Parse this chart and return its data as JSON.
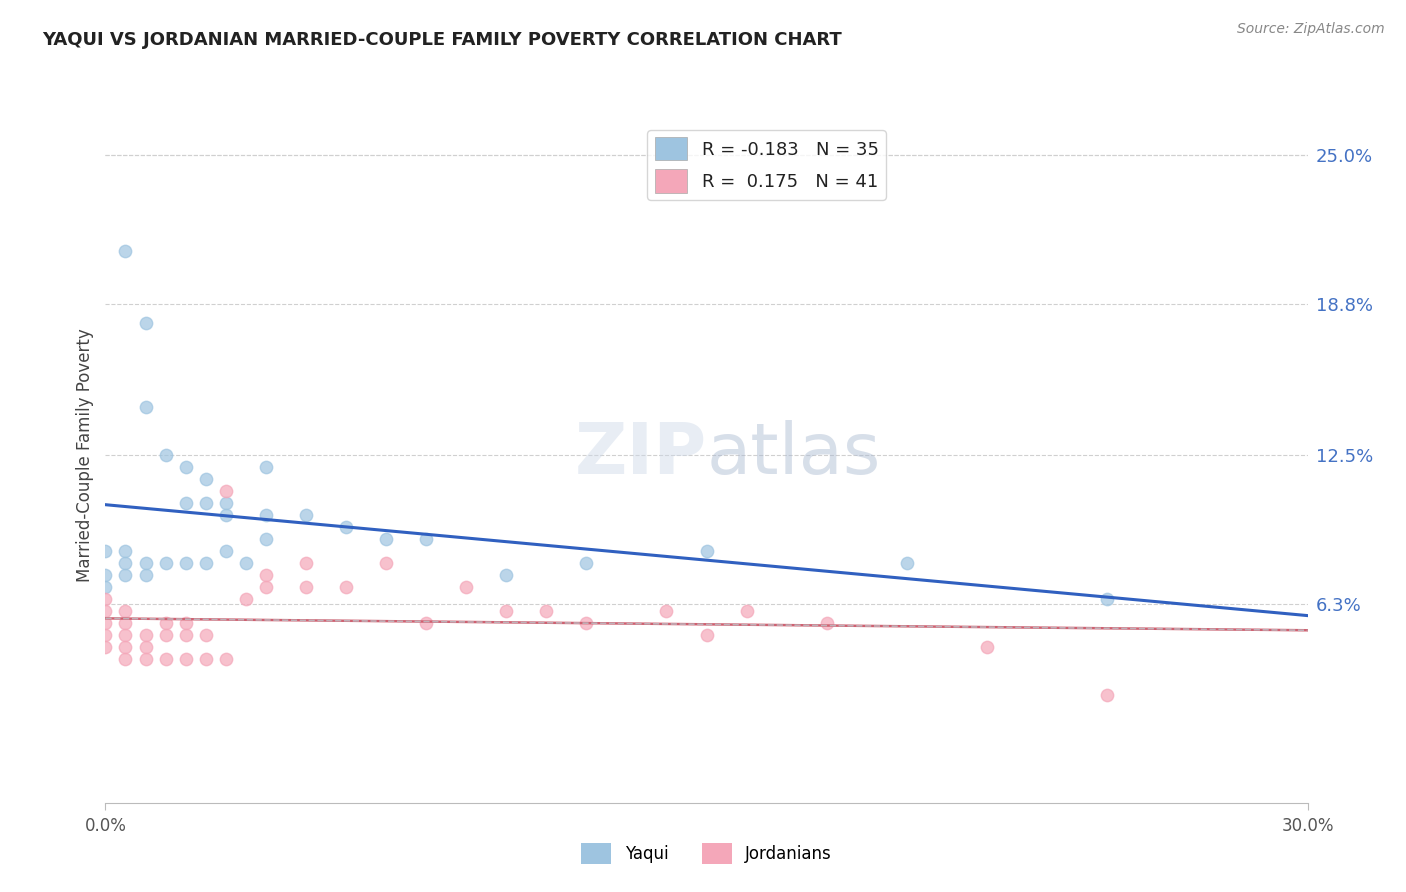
{
  "title": "YAQUI VS JORDANIAN MARRIED-COUPLE FAMILY POVERTY CORRELATION CHART",
  "source": "Source: ZipAtlas.com",
  "ylabel": "Married-Couple Family Poverty",
  "xlim": [
    0.0,
    0.3
  ],
  "ylim": [
    -0.02,
    0.27
  ],
  "xtick_vals": [
    0.0,
    0.3
  ],
  "xtick_labels": [
    "0.0%",
    "30.0%"
  ],
  "ytick_values": [
    0.25,
    0.188,
    0.125,
    0.063
  ],
  "ytick_labels": [
    "25.0%",
    "18.8%",
    "12.5%",
    "6.3%"
  ],
  "legend_labels": [
    "Yaqui",
    "Jordanians"
  ],
  "legend_R": [
    "-0.183",
    "0.175"
  ],
  "legend_N": [
    "35",
    "41"
  ],
  "yaqui_color": "#9ec4e0",
  "jordanian_color": "#f4a7b9",
  "yaqui_line_color": "#3060c0",
  "jordanian_line_color": "#d06070",
  "jordanian_dashed_color": "#c8a0b0",
  "background_color": "#ffffff",
  "yaqui_points_x": [
    0.005,
    0.01,
    0.01,
    0.015,
    0.02,
    0.02,
    0.025,
    0.025,
    0.03,
    0.03,
    0.04,
    0.04,
    0.05,
    0.06,
    0.07,
    0.08,
    0.1,
    0.15,
    0.2,
    0.25,
    0.0,
    0.0,
    0.0,
    0.005,
    0.005,
    0.005,
    0.01,
    0.01,
    0.015,
    0.02,
    0.025,
    0.03,
    0.035,
    0.04,
    0.12
  ],
  "yaqui_points_y": [
    0.21,
    0.18,
    0.145,
    0.125,
    0.12,
    0.105,
    0.105,
    0.115,
    0.1,
    0.105,
    0.1,
    0.12,
    0.1,
    0.095,
    0.09,
    0.09,
    0.075,
    0.085,
    0.08,
    0.065,
    0.085,
    0.075,
    0.07,
    0.08,
    0.075,
    0.085,
    0.08,
    0.075,
    0.08,
    0.08,
    0.08,
    0.085,
    0.08,
    0.09,
    0.08
  ],
  "jordanian_points_x": [
    0.0,
    0.0,
    0.0,
    0.0,
    0.0,
    0.005,
    0.005,
    0.005,
    0.005,
    0.005,
    0.01,
    0.01,
    0.01,
    0.015,
    0.015,
    0.015,
    0.02,
    0.02,
    0.02,
    0.025,
    0.025,
    0.03,
    0.03,
    0.035,
    0.04,
    0.04,
    0.05,
    0.05,
    0.06,
    0.07,
    0.08,
    0.09,
    0.1,
    0.11,
    0.12,
    0.14,
    0.15,
    0.16,
    0.18,
    0.22,
    0.25
  ],
  "jordanian_points_y": [
    0.045,
    0.05,
    0.055,
    0.06,
    0.065,
    0.04,
    0.045,
    0.05,
    0.055,
    0.06,
    0.04,
    0.045,
    0.05,
    0.04,
    0.05,
    0.055,
    0.04,
    0.05,
    0.055,
    0.04,
    0.05,
    0.04,
    0.11,
    0.065,
    0.07,
    0.075,
    0.07,
    0.08,
    0.07,
    0.08,
    0.055,
    0.07,
    0.06,
    0.06,
    0.055,
    0.06,
    0.05,
    0.06,
    0.055,
    0.045,
    0.025
  ]
}
